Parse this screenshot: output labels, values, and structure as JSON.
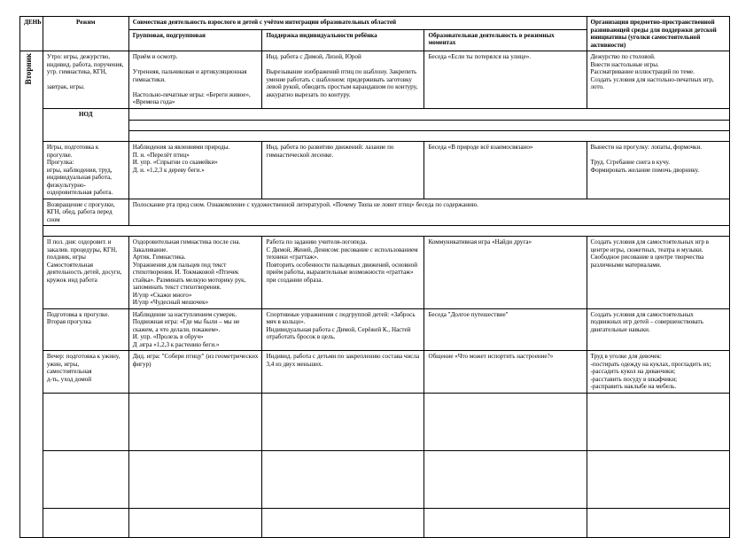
{
  "header": {
    "day_col": "ДЕНЬ",
    "rezhim": "Режим",
    "sovm": "Совместная деятельность взрослого и детей с учётом интеграции образовательных областей",
    "grp": "Групповая, подгрупповая",
    "ind": "Поддержка индивидуальности ребёнка",
    "ord": "Образовательная деятельность в режимных моментах",
    "org": "Организация предметно-пространственной развивающей среды для поддержки детской инициативы (уголки самостоятельной активности)"
  },
  "day_label": "Вторник",
  "rows": [
    {
      "rezhim": "Утро: игры, дежурство, индивид. работа, поручения, утр. гимнастика, КГН,\n\nзавтрак, игры.",
      "grp": "Приём и осмотр.\n\nУтренняя, пальчиковая и артикуляционная гимнастики.\n\nНастольно-печатные игры: «Береги живое», «Времена года»",
      "ind": "Инд. работа с Димой, Лизой, Юрой\n\nВырезывание изображений птиц по шаблону. Закрепить умение работать с шаблоном: придерживать заготовку левой рукой, обводить простым карандашом по контуру, аккуратно вырезать по контуру.",
      "ord": "Беседа «Если ты потерялся на улице».",
      "org": "Дежурство по столовой.\nВнести настольные игры.\nРассматривание иллюстраций по теме.\nСоздать условия для настольно-печатных игр, лото."
    },
    {
      "rezhim_label": "НОД"
    },
    {
      "rezhim": "Игры, подготовка к прогулке.\nПрогулка:\nигры, наблюдения, труд, индивидуальная работа, физкультурно-оздоровительная работа.",
      "grp": "Наблюдения за явлениями природы.\nП. и. «Перелёт птиц»\nИ. упр. «Спрыгни со скамейки»\nД. и. «1,2,3 к дереву беги.»",
      "ind": "Инд. работа по развитию движений: лазание по гимнастической лесенке.",
      "ord": "Беседа «В природе всё взаимосвязано»",
      "org": "Вынести на прогулку: лопаты, формочки.\n\nТруд. Сгребание снега в кучу.\nФормировать желание помочь дворнику."
    },
    {
      "rezhim": "Возвращение с прогулки, КГН, обед, работа перед сном",
      "full": "Полоскание рта пред сном. Ознакомление с художественной литературой. «Почему Тюпа не ловит птиц» беседа по содержанию."
    },
    {
      "rezhim": "II пол. дня: оздоровит. и закалив. процедуры, КГН, полдник, игры\nСамостоятельная деятельность детей, досуги, кружок инд работа",
      "grp": "Оздоровительная гимнастика после сна.\nЗакаливание.\nАртик. Гимнастика.\nУпражнения для пальцев под текст стихотворения. И. Токмаковой «Птичек стайка». Разминать мелкую моторику рук, запоминать текст стихотворения.\nИ/упр «Скажи много»\nИ/упр «Чудесный мешочек»",
      "ind": "Работа по заданию учителя-логопеда.\nС Димой, Женей, Денисом: рисование с использованием техники «граттаж».\nПовторить особенности пальцевых движений, основной приём работы, выразительные возможности «граттаж» при создании образа.",
      "ord": "Коммуникативная игра «Найди друга»",
      "org": "Создать условия для самостоятельных игр в центре игры, сюжетных, театра и музыки.\nСвободное рисование в центре творчества различными материалами."
    },
    {
      "rezhim": "Подготовка к прогулке. Вторая прогулка",
      "grp": "Наблюдение за наступлением сумерек. Подвижная игра: «Где мы были – мы не скажем, а что делали, покажем».\nИ. упр. «Пролезь в обруч»\nД .игра «1,2,3 к растению беги.»",
      "ind": "Спортивные упражнения с подгруппой детей: «Забрось мяч в кольцо».\nИндивидуальная работа с Димой, Серёжей К., Настей отработать бросок в цель.",
      "ord": "Беседа \"Долгое путешествие\"",
      "org": "Создать условия для самостоятельных подвижных игр детей – совершенствовать двигательные навыки."
    },
    {
      "rezhim": "Вечер: подготовка к ужину, ужин, игры, самостоятельная\nд-ть, уход домой",
      "grp": "Дид. игра: \"Собери птицу\" (из геометрических фигур)",
      "ind": "Индивид. работа с детьми по закреплению состава числа 3,4 из двух меньших.",
      "ord": "Общение «Что может испортить настроение?»",
      "org": "Труд в уголке для девочек:\n-постирать одежду на куклах, прогладить их;\n-рассадить кукол на диванчики;\n-расставить посуду в шкафчики;\n-расправить наклыбе на мебель."
    }
  ]
}
